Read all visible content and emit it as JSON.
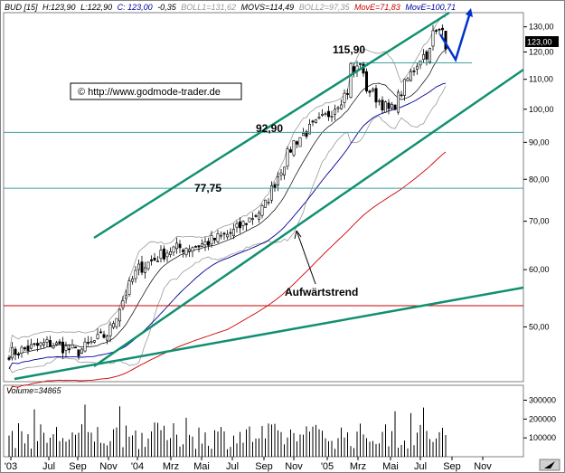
{
  "header": {
    "symbol": "BUD [15]",
    "high": "H:123,90",
    "low": "L:122,90",
    "close": "C: 123,00",
    "change": "-0,35",
    "boll1": "BOLL1=131,62",
    "movs": "MOVS=114,49",
    "boll2": "BOLL2=97,35",
    "move_red": "MovE=71,83",
    "move_blue": "MovE=100,71"
  },
  "watermark": "© http://www.godmode-trader.de",
  "price_tag": "123,00",
  "volume_label": "Volume=34865",
  "colors": {
    "up_candle": "#ffffff",
    "down_candle": "#000000",
    "trendline": "#109070",
    "horizontal_level": "#40a0a0",
    "support_line": "#cc0000",
    "ema_slow": "#cc0000",
    "ema_fast": "#000099",
    "sma": "#000000",
    "bollinger": "#999999",
    "forecast_arrow": "#0033cc",
    "header_bg": "#ffffff"
  },
  "chart_data": {
    "type": "candlestick",
    "title": "BUD [15]",
    "y_scale": "log",
    "ylim": [
      42,
      136
    ],
    "y_ticks": [
      50,
      60,
      70,
      80,
      90,
      100,
      110,
      120,
      130
    ],
    "y_tick_labels": [
      "50,00",
      "60,00",
      "70,00",
      "80,00",
      "90,00",
      "100,00",
      "110,00",
      "120,00",
      "130,00"
    ],
    "x_tick_labels": [
      "'03",
      "Jul",
      "Sep",
      "Nov",
      "'04",
      "Mrz",
      "Mai",
      "Jul",
      "Sep",
      "Nov",
      "'05",
      "Mrz",
      "Mai",
      "Jul",
      "Sep",
      "Nov"
    ],
    "levels": [
      {
        "label": "115,90",
        "value": 115.9
      },
      {
        "label": "92,90",
        "value": 92.9
      },
      {
        "label": "77,75",
        "value": 77.75
      }
    ],
    "support_line_value": 53.5,
    "annotation": "Aufwärtstrend",
    "ohlc_points": [
      {
        "x": "'03",
        "close": 46.0
      },
      {
        "x": "Jul",
        "close": 47.5
      },
      {
        "x": "Sep",
        "close": 46.2
      },
      {
        "x": "Nov",
        "close": 49.0
      },
      {
        "x": "'04",
        "close": 60.0
      },
      {
        "x": "Mrz",
        "close": 64.0
      },
      {
        "x": "Mai",
        "close": 65.0
      },
      {
        "x": "Jul",
        "close": 67.5
      },
      {
        "x": "Sep",
        "close": 73.0
      },
      {
        "x": "Nov",
        "close": 90.0
      },
      {
        "x": "'05",
        "close": 98.0
      },
      {
        "x": "Mrz",
        "close": 110.0
      },
      {
        "x": "Mai",
        "close": 99.0
      },
      {
        "x": "Jul",
        "close": 118.0
      },
      {
        "x": "Aug",
        "close": 123.0
      }
    ],
    "volume_ticks": [
      100000,
      200000,
      300000
    ],
    "volume_tick_labels": [
      "100000",
      "200000",
      "300000"
    ]
  }
}
